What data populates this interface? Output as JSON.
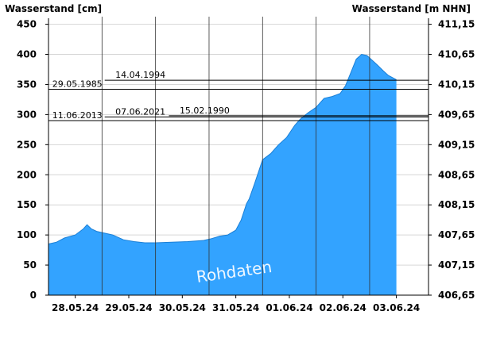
{
  "chart_data": {
    "type": "area",
    "title": "",
    "ylabel_left": "Wasserstand [cm]",
    "ylabel_right": "Wasserstand [m NHN]",
    "ylim": [
      0,
      460
    ],
    "y_ticks_left": [
      0,
      50,
      100,
      150,
      200,
      250,
      300,
      350,
      400,
      450
    ],
    "y_ticks_right": [
      "406,65",
      "407,15",
      "407,65",
      "408,15",
      "408,65",
      "409,15",
      "409,65",
      "410,15",
      "410,65",
      "411,15"
    ],
    "x_ticks": [
      "28.05.24",
      "29.05.24",
      "30.05.24",
      "31.05.24",
      "01.06.24",
      "02.06.24",
      "03.06.24"
    ],
    "x_tick_days": [
      0.5,
      1.5,
      2.5,
      3.5,
      4.5,
      5.5,
      6.5
    ],
    "xlim_days": [
      0,
      7.1
    ],
    "day_separators": [
      1,
      2,
      3,
      4,
      5,
      6
    ],
    "watermark": "Rohdaten",
    "fill_color": "#33a3ff",
    "grid": true,
    "series": [
      {
        "x": [
          0,
          0.15,
          0.3,
          0.5,
          0.65,
          0.72,
          0.8,
          0.9,
          1.0,
          1.2,
          1.4,
          1.6,
          1.8,
          2.0,
          2.3,
          2.6,
          2.9,
          3.05,
          3.2,
          3.35,
          3.5,
          3.6,
          3.7,
          3.75,
          3.85,
          4.0,
          4.15,
          4.3,
          4.45,
          4.6,
          4.7,
          4.85,
          5.0,
          5.15,
          5.3,
          5.45,
          5.55,
          5.65,
          5.75,
          5.85,
          5.95,
          6.05,
          6.15,
          6.25,
          6.35,
          6.5
        ],
        "y": [
          85,
          88,
          95,
          100,
          110,
          117,
          110,
          106,
          104,
          100,
          92,
          89,
          87,
          87,
          88,
          89,
          91,
          94,
          98,
          100,
          108,
          125,
          152,
          160,
          185,
          225,
          235,
          250,
          262,
          282,
          292,
          303,
          312,
          327,
          330,
          335,
          348,
          370,
          392,
          400,
          398,
          390,
          382,
          373,
          365,
          358
        ]
      }
    ],
    "reference_lines": [
      {
        "label": "14.04.1994",
        "value": 357,
        "x_start_day": 1.05,
        "label_day": 1.25
      },
      {
        "label": "29.05.1985",
        "value": 342,
        "x_start_day": 0,
        "label_day": 0.07
      },
      {
        "label": "15.02.1990",
        "value": 298,
        "x_start_day": 2.25,
        "label_day": 2.45
      },
      {
        "label": "07.06.2021",
        "value": 296,
        "x_start_day": 1.05,
        "label_day": 1.25
      },
      {
        "label": "11.06.2013",
        "value": 290,
        "x_start_day": 0,
        "label_day": 0.07
      }
    ]
  }
}
